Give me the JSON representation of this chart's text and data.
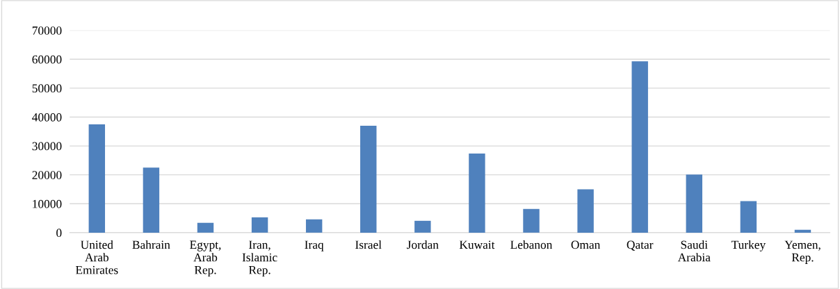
{
  "chart_data": {
    "type": "bar",
    "categories": [
      "United Arab Emirates",
      "Bahrain",
      "Egypt, Arab Rep.",
      "Iran, Islamic Rep.",
      "Iraq",
      "Israel",
      "Jordan",
      "Kuwait",
      "Lebanon",
      "Oman",
      "Qatar",
      "Saudi Arabia",
      "Turkey",
      "Yemen, Rep."
    ],
    "values": [
      37500,
      22500,
      3400,
      5300,
      4600,
      37000,
      4100,
      27400,
      8200,
      15000,
      59300,
      20100,
      10900,
      1000
    ],
    "color": "#4f81bd",
    "ylim": [
      0,
      70000
    ],
    "yticks": [
      0,
      10000,
      20000,
      30000,
      40000,
      50000,
      60000,
      70000
    ],
    "grid": "y"
  }
}
